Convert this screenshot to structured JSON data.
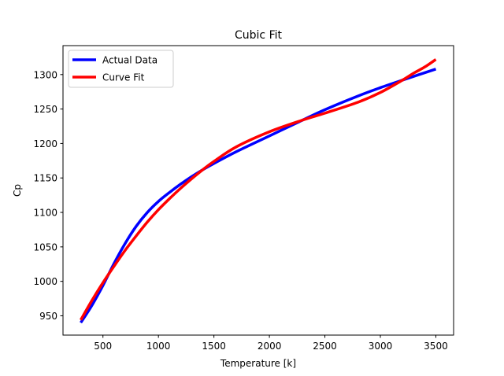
{
  "chart_data": {
    "type": "line",
    "title": "Cubic Fit",
    "xlabel": "Temperature [k]",
    "ylabel": "Cp",
    "xlim": [
      140,
      3660
    ],
    "ylim": [
      922,
      1342
    ],
    "xticks": [
      500,
      1000,
      1500,
      2000,
      2500,
      3000,
      3500
    ],
    "yticks": [
      950,
      1000,
      1050,
      1100,
      1150,
      1200,
      1250,
      1300
    ],
    "grid": false,
    "legend_position": "top-left",
    "series": [
      {
        "name": "Actual Data",
        "color": "#0000ff",
        "x": [
          300,
          400,
          500,
          600,
          700,
          800,
          900,
          1000,
          1100,
          1200,
          1300,
          1400,
          1500,
          1700,
          2000,
          2300,
          2500,
          2800,
          3000,
          3200,
          3500
        ],
        "y": [
          940,
          965,
          994,
          1026,
          1055,
          1080,
          1100,
          1116,
          1129,
          1141,
          1152,
          1162,
          1171,
          1188,
          1211,
          1234,
          1249,
          1269,
          1281,
          1292,
          1308
        ]
      },
      {
        "name": "Curve Fit",
        "color": "#ff0000",
        "x": [
          300,
          400,
          500,
          600,
          700,
          800,
          900,
          1000,
          1100,
          1200,
          1300,
          1400,
          1500,
          1700,
          2000,
          2300,
          2500,
          2800,
          3000,
          3200,
          3300,
          3400,
          3500
        ],
        "y": [
          944,
          972,
          998,
          1022,
          1045,
          1066,
          1086,
          1104,
          1120,
          1135,
          1149,
          1162,
          1174,
          1195,
          1217,
          1234,
          1244,
          1260,
          1274,
          1292,
          1302,
          1311,
          1322
        ]
      }
    ]
  }
}
